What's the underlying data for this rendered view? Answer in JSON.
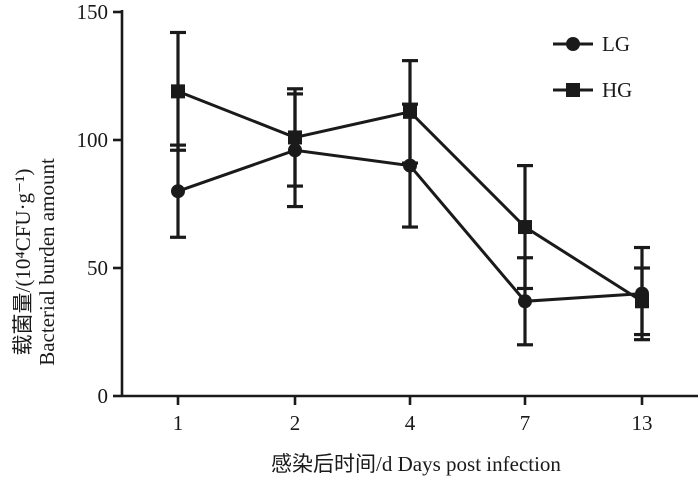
{
  "chart_data": {
    "type": "line",
    "categories": [
      "1",
      "2",
      "4",
      "7",
      "13"
    ],
    "xlabel": "感染后时间/d Days post infection",
    "ylabel_line1": "载菌量/(10⁴CFU·g⁻¹)",
    "ylabel_line2": "Bacterial burden amount",
    "ylim": [
      0,
      150
    ],
    "yticks": [
      "0",
      "50",
      "100",
      "150"
    ],
    "grid": false,
    "legend_position": "top-right",
    "series": [
      {
        "name": "LG",
        "marker": "circle",
        "values": [
          80,
          96,
          90,
          37,
          40
        ],
        "error": [
          18,
          22,
          24,
          17,
          18
        ]
      },
      {
        "name": "HG",
        "marker": "square",
        "values": [
          119,
          101,
          111,
          66,
          37
        ],
        "error": [
          23,
          19,
          20,
          24,
          13
        ]
      }
    ],
    "color": "#1a1a1a"
  }
}
